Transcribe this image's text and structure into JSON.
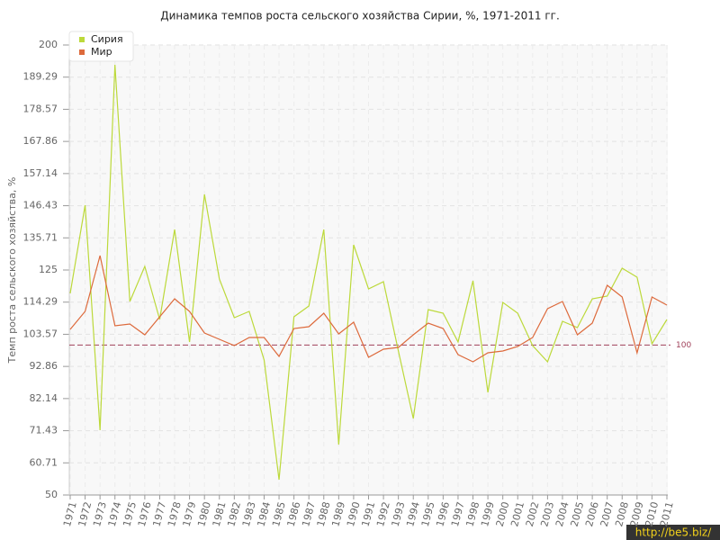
{
  "chart_data": {
    "type": "line",
    "title": "Динамика темпов роста сельского хозяйства Сирии, %, 1971-2011 гг.",
    "y_label": "Темп роста сельского хозяйства, %",
    "categories": [
      "1971",
      "1972",
      "1973",
      "1974",
      "1975",
      "1976",
      "1977",
      "1978",
      "1979",
      "1980",
      "1981",
      "1982",
      "1983",
      "1984",
      "1985",
      "1986",
      "1987",
      "1988",
      "1989",
      "1990",
      "1991",
      "1992",
      "1993",
      "1994",
      "1995",
      "1996",
      "1997",
      "1998",
      "1999",
      "2000",
      "2001",
      "2002",
      "2003",
      "2004",
      "2005",
      "2006",
      "2007",
      "2008",
      "2009",
      "2010",
      "2011"
    ],
    "series": [
      {
        "name": "Сирия",
        "color": "#bcd93a",
        "values": [
          117.2,
          146.6,
          71.6,
          193.4,
          114.5,
          126.2,
          108.5,
          138.5,
          101,
          150.2,
          122,
          109.1,
          111.2,
          95,
          55.1,
          109.4,
          113,
          138.5,
          66.8,
          133.4,
          118.7,
          121.1,
          98,
          75.5,
          111.8,
          110.6,
          101,
          121.4,
          84.2,
          114.2,
          110.6,
          99.8,
          94.4,
          107.9,
          105.8,
          115.4,
          116.3,
          125.6,
          122.6,
          100.4,
          108.5
        ]
      },
      {
        "name": "Мир",
        "color": "#dd6a3c",
        "values": [
          105.2,
          111.2,
          129.8,
          106.4,
          107,
          103.4,
          109.4,
          115.4,
          111.2,
          104,
          101.9,
          99.8,
          102.5,
          102.5,
          96.2,
          105.5,
          106.1,
          110.6,
          103.7,
          107.6,
          95.9,
          98.6,
          99.2,
          103.4,
          107.3,
          105.5,
          96.8,
          94.4,
          97.4,
          98,
          99.5,
          102.5,
          112.1,
          114.5,
          103.4,
          107.3,
          119.9,
          116,
          97.4,
          116,
          113.3
        ]
      }
    ],
    "ylim": [
      50,
      200
    ],
    "yticks": [
      50,
      60.71,
      71.43,
      82.14,
      92.86,
      103.57,
      114.29,
      125,
      135.71,
      146.43,
      157.14,
      167.86,
      178.57,
      189.29,
      200
    ],
    "reference_line": 100,
    "grid": true,
    "legend": "top-left",
    "watermark": "http://be5.biz/"
  }
}
